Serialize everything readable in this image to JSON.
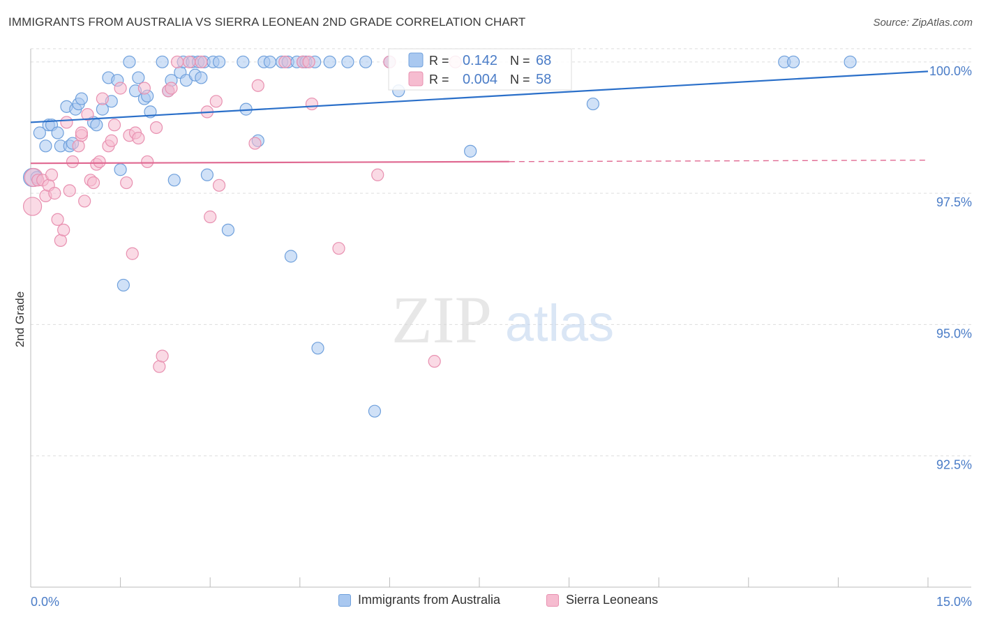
{
  "title": "IMMIGRANTS FROM AUSTRALIA VS SIERRA LEONEAN 2ND GRADE CORRELATION CHART",
  "source": "Source: ZipAtlas.com",
  "watermark": {
    "zip": "ZIP",
    "atlas": "atlas"
  },
  "colors": {
    "blue_fill": "#a9c8f0",
    "blue_stroke": "#6fa0dc",
    "blue_line": "#2a6fc9",
    "pink_fill": "#f6bcd0",
    "pink_stroke": "#e890b0",
    "pink_line": "#e06a92",
    "axis_text": "#4a7cc7",
    "grid": "#dddddd"
  },
  "stats": [
    {
      "r_label": "R =",
      "r_value": "0.142",
      "n_label": "N =",
      "n_value": "68"
    },
    {
      "r_label": "R =",
      "r_value": "0.004",
      "n_label": "N =",
      "n_value": "58"
    }
  ],
  "legend": {
    "series1": "Immigrants from Australia",
    "series2": "Sierra Leoneans"
  },
  "chart_data": {
    "type": "scatter",
    "title": "IMMIGRANTS FROM AUSTRALIA VS SIERRA LEONEAN 2ND GRADE CORRELATION CHART",
    "ylabel": "2nd Grade",
    "xlabel": "",
    "xlim": [
      0,
      15
    ],
    "ylim": [
      90.0,
      100.25
    ],
    "x_ticks": [
      "0.0%",
      "15.0%"
    ],
    "y_ticks": [
      {
        "value": 100.0,
        "label": "100.0%"
      },
      {
        "value": 97.5,
        "label": "97.5%"
      },
      {
        "value": 95.0,
        "label": "95.0%"
      },
      {
        "value": 92.5,
        "label": "92.5%"
      }
    ],
    "grid": true,
    "legend_position": "bottom-center",
    "series": [
      {
        "name": "Immigrants from Australia",
        "r": 0.142,
        "n": 68,
        "trend": {
          "x": [
            0,
            15
          ],
          "y": [
            98.85,
            99.82
          ],
          "dashed_from": null
        },
        "points": [
          [
            0.03,
            97.8
          ],
          [
            0.1,
            97.8
          ],
          [
            0.15,
            98.65
          ],
          [
            0.25,
            98.4
          ],
          [
            0.3,
            98.8
          ],
          [
            0.35,
            98.8
          ],
          [
            0.45,
            98.65
          ],
          [
            0.5,
            98.4
          ],
          [
            0.6,
            99.15
          ],
          [
            0.65,
            98.4
          ],
          [
            0.7,
            98.45
          ],
          [
            0.75,
            99.1
          ],
          [
            0.8,
            99.2
          ],
          [
            0.85,
            99.3
          ],
          [
            1.05,
            98.85
          ],
          [
            1.1,
            98.8
          ],
          [
            1.2,
            99.1
          ],
          [
            1.3,
            99.7
          ],
          [
            1.35,
            99.25
          ],
          [
            1.45,
            99.65
          ],
          [
            1.5,
            97.95
          ],
          [
            1.55,
            95.75
          ],
          [
            1.65,
            100.0
          ],
          [
            1.75,
            99.45
          ],
          [
            1.8,
            99.7
          ],
          [
            1.9,
            99.3
          ],
          [
            1.95,
            99.35
          ],
          [
            2.0,
            99.05
          ],
          [
            2.2,
            100.0
          ],
          [
            2.3,
            99.45
          ],
          [
            2.35,
            99.65
          ],
          [
            2.4,
            97.75
          ],
          [
            2.5,
            99.8
          ],
          [
            2.55,
            100.0
          ],
          [
            2.6,
            99.65
          ],
          [
            2.7,
            100.0
          ],
          [
            2.75,
            99.75
          ],
          [
            2.8,
            100.0
          ],
          [
            2.85,
            99.7
          ],
          [
            2.9,
            100.0
          ],
          [
            2.95,
            97.85
          ],
          [
            3.05,
            100.0
          ],
          [
            3.15,
            100.0
          ],
          [
            3.3,
            96.8
          ],
          [
            3.55,
            100.0
          ],
          [
            3.6,
            99.1
          ],
          [
            3.8,
            98.5
          ],
          [
            3.9,
            100.0
          ],
          [
            4.0,
            100.0
          ],
          [
            4.2,
            100.0
          ],
          [
            4.3,
            100.0
          ],
          [
            4.35,
            96.3
          ],
          [
            4.45,
            100.0
          ],
          [
            4.55,
            100.0
          ],
          [
            4.6,
            100.0
          ],
          [
            4.75,
            100.0
          ],
          [
            4.8,
            94.55
          ],
          [
            5.0,
            100.0
          ],
          [
            5.3,
            100.0
          ],
          [
            5.6,
            100.0
          ],
          [
            5.75,
            93.35
          ],
          [
            6.0,
            100.0
          ],
          [
            6.15,
            99.45
          ],
          [
            7.35,
            98.3
          ],
          [
            9.4,
            99.2
          ],
          [
            12.6,
            100.0
          ],
          [
            12.75,
            100.0
          ],
          [
            13.7,
            100.0
          ]
        ]
      },
      {
        "name": "Sierra Leoneans",
        "r": 0.004,
        "n": 58,
        "trend": {
          "x": [
            0,
            15
          ],
          "y": [
            98.07,
            98.13
          ],
          "dashed_from": 8.0
        },
        "points": [
          [
            0.03,
            97.25
          ],
          [
            0.05,
            97.8
          ],
          [
            0.12,
            97.75
          ],
          [
            0.2,
            97.75
          ],
          [
            0.25,
            97.45
          ],
          [
            0.3,
            97.65
          ],
          [
            0.35,
            97.85
          ],
          [
            0.4,
            97.5
          ],
          [
            0.45,
            97.0
          ],
          [
            0.5,
            96.6
          ],
          [
            0.55,
            96.8
          ],
          [
            0.6,
            98.85
          ],
          [
            0.65,
            97.55
          ],
          [
            0.7,
            98.1
          ],
          [
            0.8,
            98.4
          ],
          [
            0.85,
            98.6
          ],
          [
            0.85,
            98.65
          ],
          [
            0.9,
            97.35
          ],
          [
            0.95,
            99.0
          ],
          [
            1.0,
            97.75
          ],
          [
            1.05,
            97.7
          ],
          [
            1.1,
            98.05
          ],
          [
            1.15,
            98.1
          ],
          [
            1.2,
            99.3
          ],
          [
            1.3,
            98.4
          ],
          [
            1.35,
            98.5
          ],
          [
            1.4,
            98.8
          ],
          [
            1.5,
            99.5
          ],
          [
            1.6,
            97.7
          ],
          [
            1.65,
            98.6
          ],
          [
            1.7,
            96.35
          ],
          [
            1.75,
            98.65
          ],
          [
            1.8,
            98.55
          ],
          [
            1.9,
            99.5
          ],
          [
            1.95,
            98.1
          ],
          [
            2.1,
            98.75
          ],
          [
            2.15,
            94.2
          ],
          [
            2.2,
            94.4
          ],
          [
            2.3,
            99.45
          ],
          [
            2.35,
            99.5
          ],
          [
            2.45,
            100.0
          ],
          [
            2.65,
            100.0
          ],
          [
            2.85,
            100.0
          ],
          [
            2.95,
            99.05
          ],
          [
            3.0,
            97.05
          ],
          [
            3.1,
            99.25
          ],
          [
            3.15,
            97.65
          ],
          [
            3.75,
            98.45
          ],
          [
            3.8,
            99.55
          ],
          [
            4.25,
            100.0
          ],
          [
            4.55,
            100.0
          ],
          [
            4.65,
            100.0
          ],
          [
            4.7,
            99.2
          ],
          [
            5.15,
            96.45
          ],
          [
            5.8,
            97.85
          ],
          [
            6.0,
            100.0
          ],
          [
            6.75,
            94.3
          ],
          [
            7.1,
            100.0
          ]
        ]
      }
    ]
  }
}
